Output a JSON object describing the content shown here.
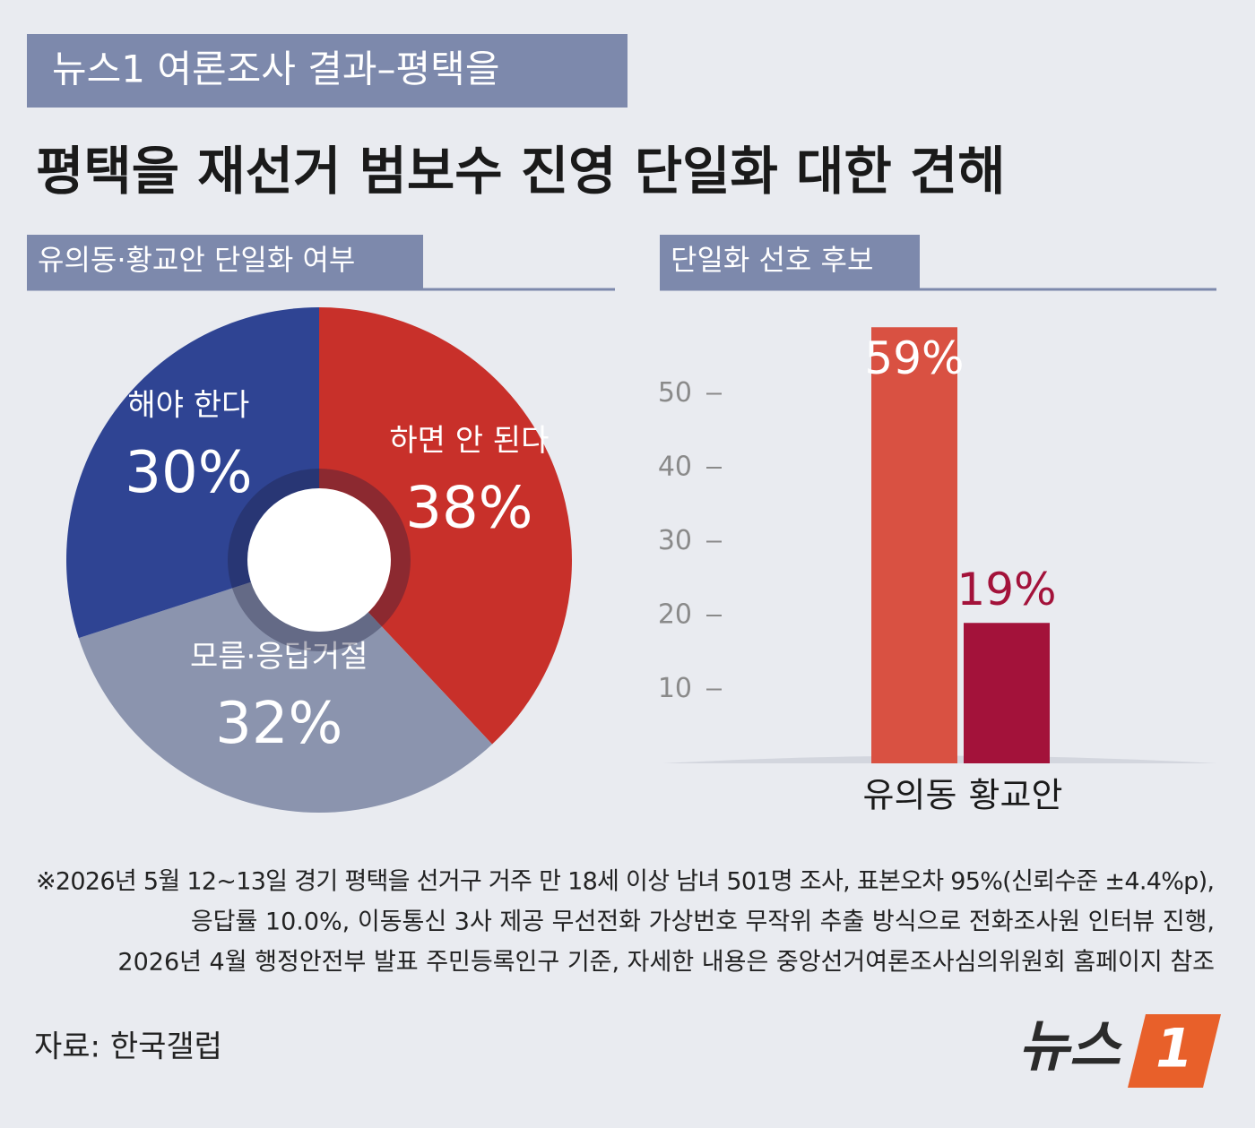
{
  "header": {
    "tag": "뉴스1 여론조사 결과–평택을",
    "title": "평택을 재선거 범보수 진영 단일화 대한 견해"
  },
  "chart_data": [
    {
      "type": "pie",
      "title": "유의동·황교안 단일화 여부",
      "categories": [
        "하면 안 된다",
        "모름·응답거절",
        "해야 한다"
      ],
      "values": [
        38,
        32,
        30
      ],
      "value_labels": [
        "38%",
        "32%",
        "30%"
      ],
      "colors": [
        "#c8302a",
        "#8b94ae",
        "#2f4493"
      ]
    },
    {
      "type": "bar",
      "title": "단일화 선호 후보",
      "categories": [
        "유의동",
        "황교안"
      ],
      "values": [
        59,
        19
      ],
      "value_labels": [
        "59%",
        "19%"
      ],
      "colors": [
        "#d95142",
        "#a3123a"
      ],
      "label_colors": [
        "#ffffff",
        "#a3123a"
      ],
      "ylim": [
        0,
        60
      ],
      "yticks": [
        10,
        20,
        30,
        40,
        50
      ]
    }
  ],
  "footnote": [
    "※2026년 5월 12~13일 경기 평택을 선거구 거주 만 18세 이상 남녀 501명 조사, 표본오차 95%(신뢰수준 ±4.4%p),",
    "응답률 10.0%, 이동통신 3사 제공 무선전화 가상번호 무작위 추출 방식으로 전화조사원 인터뷰 진행,",
    "2026년 4월 행정안전부 발표 주민등록인구 기준, 자세한 내용은 중앙선거여론조사심의위원회 홈페이지 참조"
  ],
  "source": "자료: 한국갤럽",
  "logo": {
    "name": "뉴스",
    "number": "1"
  }
}
